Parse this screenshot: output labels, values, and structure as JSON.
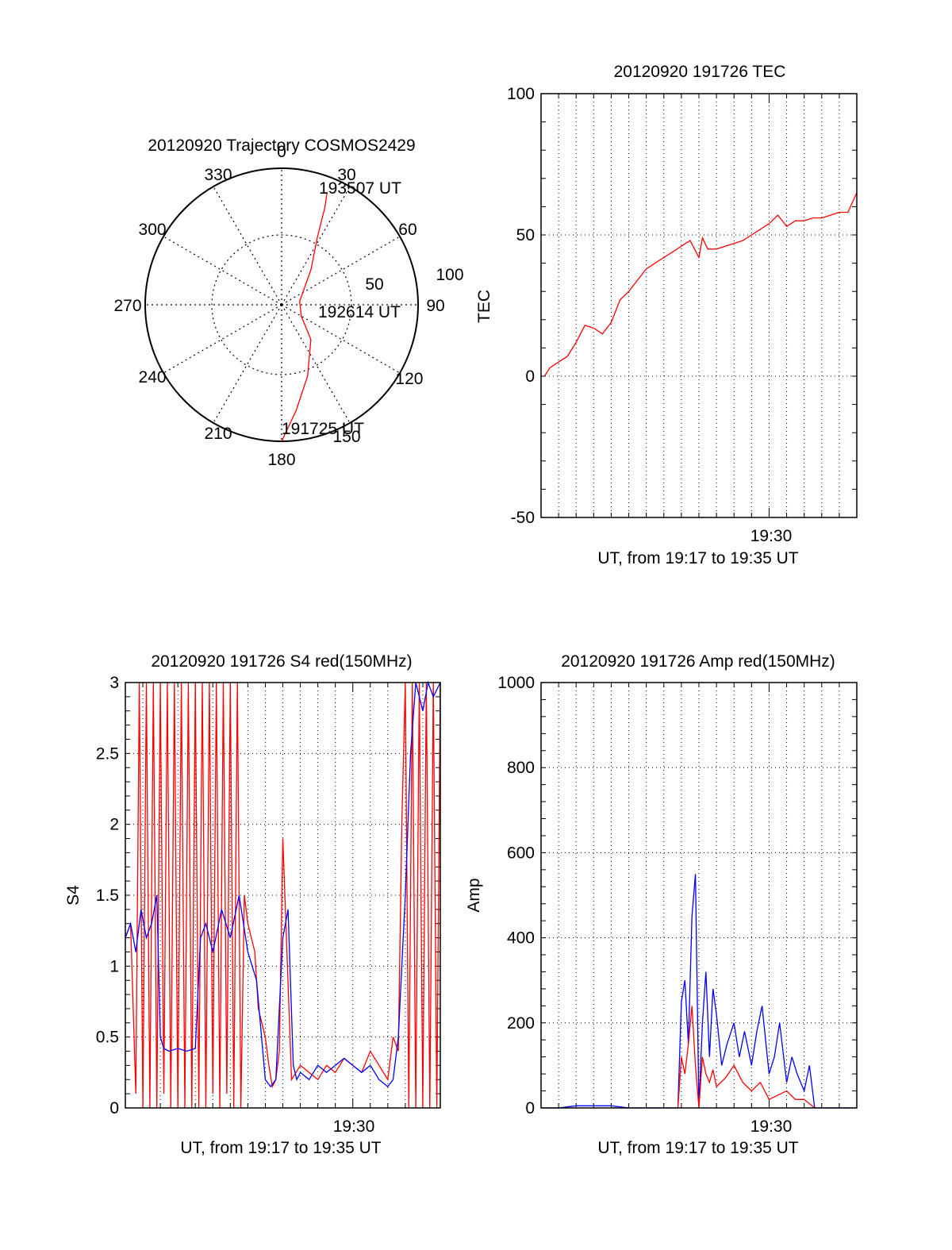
{
  "chart_data": [
    {
      "type": "polar",
      "title": "20120920 Trajectory COSMOS2429",
      "azimuth_labels": [
        "0",
        "30",
        "60",
        "90",
        "120",
        "150",
        "180",
        "210",
        "240",
        "270",
        "300",
        "330"
      ],
      "radial_labels": [
        "50",
        "100"
      ],
      "trajectory": [
        {
          "az": 180,
          "el": 0
        },
        {
          "az": 172,
          "el": 20
        },
        {
          "az": 160,
          "el": 40
        },
        {
          "az": 140,
          "el": 60
        },
        {
          "az": 120,
          "el": 75
        },
        {
          "az": 80,
          "el": 78
        },
        {
          "az": 40,
          "el": 60
        },
        {
          "az": 28,
          "el": 40
        },
        {
          "az": 24,
          "el": 20
        },
        {
          "az": 22,
          "el": 10
        }
      ],
      "annotations": [
        {
          "text": "193507 UT",
          "az": 22,
          "el": 10
        },
        {
          "text": "192614 UT",
          "az": 82,
          "el": 75
        },
        {
          "text": "191725 UT",
          "az": 180,
          "el": 0
        }
      ],
      "colors": {
        "trajectory": "#ff0000",
        "grid": "#000000"
      }
    },
    {
      "type": "line",
      "title": "20120920 191726 TEC",
      "xlabel": "UT, from 19:17 to 19:35 UT",
      "ylabel": "TEC",
      "xlim": [
        0,
        18
      ],
      "ylim": [
        -50,
        100
      ],
      "yticks": [
        "-50",
        "0",
        "50",
        "100"
      ],
      "xtick_label": "19:30",
      "xtick_value": 13,
      "series": [
        {
          "color": "#ff0000",
          "x": [
            0.2,
            0.5,
            1.0,
            1.5,
            2.0,
            2.5,
            3.0,
            3.5,
            4.0,
            4.5,
            5.0,
            5.5,
            6.0,
            6.5,
            7.0,
            7.5,
            8.0,
            8.5,
            9.0,
            9.2,
            9.5,
            10.0,
            10.5,
            11.0,
            11.5,
            12.0,
            12.5,
            13.0,
            13.5,
            14.0,
            14.5,
            15.0,
            15.5,
            16.0,
            16.5,
            17.0,
            17.5,
            18.0
          ],
          "y": [
            0,
            3,
            5,
            7,
            12,
            18,
            17,
            15,
            19,
            27,
            30,
            34,
            38,
            40,
            42,
            44,
            46,
            48,
            42,
            49,
            45,
            45,
            46,
            47,
            48,
            50,
            52,
            54,
            57,
            53,
            55,
            55,
            56,
            56,
            57,
            58,
            58,
            65
          ]
        }
      ]
    },
    {
      "type": "line",
      "title": "20120920 191726 S4 red(150MHz)",
      "xlabel": "UT, from 19:17 to 19:35 UT",
      "ylabel": "S4",
      "xlim": [
        0,
        18
      ],
      "ylim": [
        0,
        3
      ],
      "yticks": [
        "0",
        "0.5",
        "1",
        "1.5",
        "2",
        "2.5",
        "3"
      ],
      "xtick_label": "19:30",
      "xtick_value": 13,
      "series": [
        {
          "color": "#ff0000",
          "x": [
            0.0,
            0.3,
            0.6,
            0.8,
            1.0,
            1.2,
            1.4,
            1.6,
            1.8,
            2.0,
            2.2,
            2.4,
            2.6,
            2.8,
            3.0,
            3.2,
            3.4,
            3.6,
            3.8,
            4.0,
            4.2,
            4.4,
            4.6,
            4.8,
            5.0,
            5.2,
            5.4,
            5.6,
            5.8,
            6.0,
            6.2,
            6.4,
            6.6,
            6.8,
            7.0,
            7.2,
            7.4,
            7.6,
            7.8,
            8.0,
            8.2,
            8.4,
            8.6,
            8.8,
            9.0,
            9.5,
            10.0,
            10.5,
            11.0,
            11.5,
            12.0,
            12.5,
            13.0,
            13.5,
            14.0,
            14.5,
            15.0,
            15.3,
            15.6,
            15.8,
            16.0,
            16.2,
            16.4,
            16.6,
            16.8,
            17.0,
            17.2,
            17.4,
            17.6,
            17.8,
            18.0
          ],
          "y": [
            1.2,
            1.3,
            0.1,
            3.0,
            0.0,
            3.0,
            0.0,
            3.0,
            0.0,
            3.0,
            0.1,
            3.0,
            0.0,
            3.0,
            0.0,
            3.0,
            0.0,
            3.0,
            0.0,
            3.0,
            0.0,
            3.0,
            0.0,
            3.0,
            0.1,
            3.0,
            0.0,
            3.0,
            0.1,
            3.0,
            0.0,
            3.0,
            0.0,
            1.5,
            1.3,
            1.2,
            1.1,
            0.7,
            0.6,
            0.5,
            0.3,
            0.15,
            0.2,
            0.4,
            1.9,
            0.2,
            0.3,
            0.25,
            0.2,
            0.3,
            0.25,
            0.35,
            0.3,
            0.25,
            0.4,
            0.3,
            0.2,
            0.5,
            0.4,
            2.0,
            3.0,
            0.0,
            3.0,
            0.0,
            3.0,
            0.0,
            3.0,
            0.0,
            3.0,
            0.0,
            3.0
          ]
        },
        {
          "color": "#0000ff",
          "x": [
            0.0,
            0.3,
            0.6,
            0.9,
            1.2,
            1.5,
            1.8,
            2.0,
            2.2,
            2.5,
            3.0,
            3.5,
            4.0,
            4.3,
            4.6,
            5.0,
            5.5,
            6.0,
            6.5,
            7.0,
            7.5,
            8.0,
            8.3,
            8.6,
            9.0,
            9.3,
            9.6,
            9.8,
            10.0,
            10.5,
            11.0,
            11.5,
            12.0,
            12.5,
            13.0,
            13.5,
            14.0,
            14.5,
            15.0,
            15.3,
            15.6,
            16.0,
            16.3,
            16.6,
            17.0,
            17.3,
            17.6,
            18.0
          ],
          "y": [
            1.2,
            1.3,
            1.1,
            1.4,
            1.2,
            1.3,
            1.5,
            0.5,
            0.42,
            0.4,
            0.42,
            0.4,
            0.42,
            1.2,
            1.3,
            1.1,
            1.4,
            1.2,
            1.5,
            1.1,
            0.9,
            0.2,
            0.15,
            0.2,
            1.2,
            1.4,
            0.3,
            0.2,
            0.25,
            0.2,
            0.3,
            0.25,
            0.3,
            0.35,
            0.3,
            0.25,
            0.3,
            0.2,
            0.15,
            0.2,
            0.5,
            1.5,
            2.5,
            3.0,
            2.8,
            3.0,
            2.9,
            3.0
          ]
        }
      ]
    },
    {
      "type": "line",
      "title": "20120920 191726 Amp red(150MHz)",
      "xlabel": "UT, from 19:17 to 19:35 UT",
      "ylabel": "Amp",
      "xlim": [
        0,
        18
      ],
      "ylim": [
        0,
        1000
      ],
      "yticks": [
        "0",
        "200",
        "400",
        "600",
        "800",
        "1000"
      ],
      "xtick_label": "19:30",
      "xtick_value": 13,
      "series": [
        {
          "color": "#0000ff",
          "x": [
            0,
            1,
            2,
            3,
            4,
            5,
            6,
            7,
            7.8,
            8.0,
            8.2,
            8.4,
            8.6,
            8.8,
            9.0,
            9.2,
            9.4,
            9.6,
            9.8,
            10.0,
            10.3,
            10.6,
            11.0,
            11.3,
            11.6,
            12.0,
            12.3,
            12.6,
            13.0,
            13.3,
            13.6,
            14.0,
            14.3,
            14.6,
            15.0,
            15.3,
            15.6,
            16,
            17,
            18
          ],
          "y": [
            0,
            0,
            5,
            5,
            5,
            0,
            0,
            0,
            0,
            250,
            300,
            150,
            450,
            550,
            0,
            200,
            320,
            120,
            280,
            220,
            100,
            150,
            200,
            120,
            180,
            100,
            180,
            240,
            80,
            120,
            200,
            60,
            120,
            80,
            40,
            100,
            0,
            0,
            0,
            0
          ]
        },
        {
          "color": "#ff0000",
          "x": [
            7.8,
            8.0,
            8.2,
            8.4,
            8.6,
            8.8,
            9.0,
            9.2,
            9.4,
            9.6,
            9.8,
            10.0,
            10.5,
            11.0,
            11.5,
            12.0,
            12.5,
            13.0,
            13.5,
            14.0,
            14.5,
            15.0,
            15.3,
            15.6
          ],
          "y": [
            0,
            120,
            80,
            150,
            240,
            100,
            0,
            120,
            80,
            60,
            90,
            50,
            70,
            100,
            60,
            40,
            60,
            20,
            30,
            40,
            20,
            20,
            10,
            0
          ]
        }
      ]
    }
  ]
}
